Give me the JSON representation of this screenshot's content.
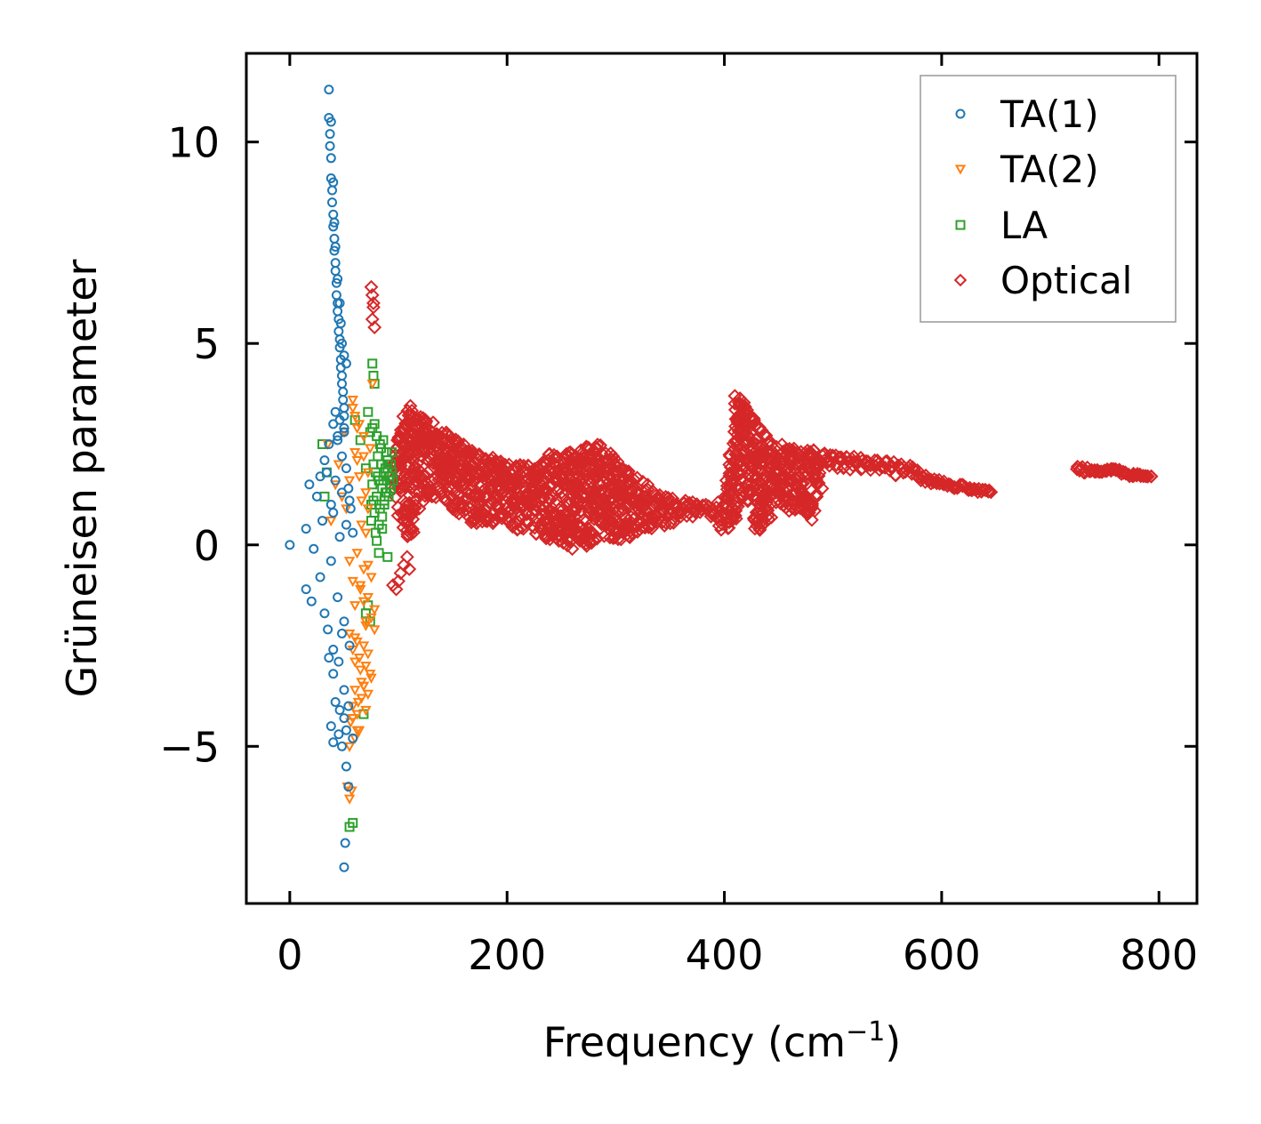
{
  "chart_data": {
    "type": "scatter",
    "title": "",
    "xlabel": "Frequency (cm",
    "xlabel_sup": "−1",
    "xlabel_close": ")",
    "ylabel": "Grüneisen parameter",
    "xlim": [
      -40,
      835
    ],
    "ylim": [
      -8.9,
      12.2
    ],
    "xticks": [
      0,
      200,
      400,
      600,
      800
    ],
    "xtick_labels": [
      "0",
      "200",
      "400",
      "600",
      "800"
    ],
    "yticks": [
      -5,
      0,
      5,
      10
    ],
    "ytick_labels": [
      "−5",
      "0",
      "5",
      "10"
    ],
    "grid": false,
    "legend_position": "top-right",
    "series": [
      {
        "name": "TA(1)",
        "marker": "circle",
        "color": "#1f77b4",
        "x": [
          36,
          36,
          37,
          37,
          38,
          38,
          39,
          39,
          40,
          40,
          41,
          41,
          42,
          42,
          43,
          43,
          44,
          44,
          45,
          45,
          46,
          46,
          47,
          47,
          48,
          48,
          49,
          49,
          50,
          50,
          38,
          40,
          41,
          42,
          44,
          46,
          47,
          48,
          50,
          52,
          0,
          15,
          18,
          22,
          25,
          28,
          30,
          32,
          34,
          36,
          38,
          40,
          42,
          44,
          46,
          48,
          50,
          52,
          55,
          58,
          15,
          20,
          28,
          32,
          35,
          38,
          40,
          44,
          48,
          50,
          36,
          40,
          45,
          50,
          55,
          38,
          42,
          46,
          50,
          54,
          40,
          45,
          48,
          52,
          58,
          52,
          54,
          51,
          50,
          40,
          42,
          44,
          46,
          48,
          50,
          52,
          54,
          56
        ],
        "y": [
          11.3,
          10.6,
          10.2,
          9.9,
          9.6,
          9.1,
          8.8,
          8.5,
          8.2,
          7.9,
          7.6,
          7.3,
          7.0,
          6.8,
          6.5,
          6.2,
          6.0,
          5.8,
          5.6,
          5.3,
          5.1,
          4.9,
          4.6,
          4.4,
          4.2,
          4.0,
          3.8,
          3.6,
          3.4,
          3.2,
          10.5,
          9.0,
          8.0,
          7.4,
          6.6,
          6.0,
          5.5,
          5.0,
          4.7,
          4.5,
          0.0,
          0.4,
          1.5,
          -0.1,
          1.2,
          1.7,
          0.6,
          2.1,
          1.8,
          2.5,
          1.0,
          0.8,
          1.6,
          2.7,
          0.2,
          1.3,
          2.9,
          0.5,
          1.1,
          0.3,
          -1.1,
          -1.4,
          -0.8,
          -1.7,
          -2.1,
          -0.4,
          -2.6,
          -1.3,
          -2.2,
          -1.9,
          -2.8,
          -3.2,
          -2.9,
          -3.6,
          -2.5,
          -4.5,
          -3.9,
          -4.1,
          -4.3,
          -4.0,
          -4.9,
          -4.7,
          -5.0,
          -4.6,
          -4.8,
          -5.5,
          -6.0,
          -7.4,
          -8.0,
          3.0,
          3.3,
          2.6,
          3.1,
          2.2,
          2.8,
          1.9,
          1.4,
          0.9
        ]
      },
      {
        "name": "TA(2)",
        "marker": "triangle-down",
        "color": "#ff7f0e",
        "x": [
          35,
          38,
          42,
          45,
          48,
          50,
          52,
          55,
          58,
          60,
          62,
          64,
          66,
          68,
          70,
          72,
          74,
          76,
          58,
          60,
          62,
          64,
          66,
          68,
          70,
          72,
          55,
          58,
          60,
          62,
          65,
          68,
          70,
          72,
          75,
          78,
          55,
          58,
          60,
          62,
          65,
          68,
          70,
          72,
          75,
          78,
          60,
          63,
          66,
          70,
          74,
          56,
          58,
          60,
          62,
          64,
          66,
          68,
          70,
          72,
          55,
          58,
          62,
          65,
          68,
          72,
          75,
          60,
          64,
          68,
          53,
          55,
          57
        ],
        "y": [
          2.5,
          0.6,
          1.5,
          2.0,
          1.2,
          2.8,
          0.9,
          1.6,
          3.4,
          2.3,
          2.1,
          3.0,
          1.1,
          2.7,
          0.3,
          1.8,
          2.4,
          4.0,
          3.6,
          3.2,
          2.9,
          1.7,
          0.5,
          2.2,
          1.3,
          0.9,
          -0.4,
          -0.9,
          -1.5,
          -0.2,
          -1.1,
          -0.6,
          -1.9,
          -1.3,
          -0.8,
          -1.6,
          -2.2,
          -2.6,
          -2.9,
          -2.4,
          -3.1,
          -2.5,
          -2.0,
          -2.7,
          -3.3,
          -2.1,
          -3.6,
          -3.9,
          -3.4,
          -4.1,
          -3.2,
          -4.4,
          -4.0,
          -4.8,
          -4.2,
          -4.6,
          -3.8,
          -3.5,
          -3.0,
          -3.7,
          -5.0,
          -4.3,
          -4.6,
          -1.0,
          -1.4,
          -0.5,
          -1.8,
          -2.3,
          -2.8,
          -3.5,
          -6.0,
          -6.3,
          -6.1
        ]
      },
      {
        "name": "LA",
        "marker": "square",
        "color": "#2ca02c",
        "x": [
          75,
          76,
          77,
          78,
          79,
          80,
          81,
          82,
          83,
          84,
          85,
          86,
          87,
          88,
          89,
          90,
          91,
          92,
          93,
          94,
          95,
          75,
          77,
          79,
          81,
          83,
          85,
          87,
          89,
          91,
          93,
          76,
          78,
          80,
          82,
          84,
          86,
          88,
          90,
          92,
          94,
          60,
          65,
          70,
          72,
          74,
          30,
          32,
          34,
          80,
          82,
          85,
          90,
          76,
          77,
          78,
          70,
          72,
          74,
          68,
          58,
          55
        ],
        "y": [
          1.0,
          1.5,
          2.0,
          0.8,
          1.8,
          1.2,
          2.2,
          1.6,
          0.9,
          2.4,
          1.4,
          2.6,
          1.1,
          1.9,
          1.3,
          2.1,
          1.7,
          1.5,
          2.0,
          1.8,
          1.6,
          0.6,
          1.1,
          0.3,
          1.7,
          2.5,
          0.7,
          1.0,
          2.3,
          1.2,
          1.4,
          2.9,
          3.0,
          2.7,
          0.5,
          2.0,
          1.6,
          1.3,
          1.9,
          1.7,
          2.3,
          3.1,
          2.6,
          1.9,
          3.3,
          2.8,
          2.5,
          1.2,
          1.8,
          0.1,
          -0.2,
          0.4,
          -0.3,
          4.5,
          4.2,
          4.0,
          -1.7,
          -1.5,
          -1.9,
          -4.2,
          -6.9,
          -7.0
        ]
      },
      {
        "name": "Optical",
        "marker": "diamond",
        "color": "#d62728",
        "bands": [
          [
            95,
            1.4,
            2.2
          ],
          [
            100,
            0.6,
            2.8
          ],
          [
            105,
            0.4,
            3.2
          ],
          [
            110,
            0.0,
            3.5
          ],
          [
            115,
            0.3,
            3.2
          ],
          [
            120,
            0.9,
            3.3
          ],
          [
            130,
            1.2,
            3.1
          ],
          [
            140,
            1.0,
            2.9
          ],
          [
            150,
            0.8,
            2.7
          ],
          [
            160,
            0.7,
            2.5
          ],
          [
            170,
            0.5,
            2.4
          ],
          [
            180,
            0.6,
            2.2
          ],
          [
            190,
            0.5,
            2.2
          ],
          [
            200,
            0.6,
            2.1
          ],
          [
            210,
            0.3,
            2.0
          ],
          [
            220,
            0.4,
            2.0
          ],
          [
            230,
            0.2,
            2.1
          ],
          [
            240,
            0.1,
            2.3
          ],
          [
            250,
            0.0,
            2.2
          ],
          [
            260,
            -0.1,
            2.4
          ],
          [
            270,
            -0.1,
            2.4
          ],
          [
            280,
            0.1,
            2.6
          ],
          [
            290,
            0.2,
            2.4
          ],
          [
            300,
            0.1,
            2.2
          ],
          [
            310,
            0.1,
            1.9
          ],
          [
            320,
            0.3,
            1.7
          ],
          [
            330,
            0.4,
            1.5
          ],
          [
            340,
            0.4,
            1.3
          ],
          [
            350,
            0.5,
            1.2
          ],
          [
            360,
            0.6,
            1.1
          ],
          [
            370,
            0.7,
            1.1
          ],
          [
            380,
            0.8,
            1.0
          ],
          [
            390,
            0.6,
            1.0
          ],
          [
            400,
            0.3,
            1.2
          ],
          [
            405,
            0.4,
            2.8
          ],
          [
            410,
            0.6,
            3.7
          ],
          [
            415,
            1.0,
            3.7
          ],
          [
            420,
            1.2,
            3.5
          ],
          [
            425,
            0.5,
            3.3
          ],
          [
            430,
            0.2,
            3.1
          ],
          [
            435,
            0.4,
            2.9
          ],
          [
            440,
            0.6,
            2.7
          ],
          [
            450,
            0.9,
            2.5
          ],
          [
            460,
            0.8,
            2.5
          ],
          [
            470,
            0.9,
            2.4
          ],
          [
            480,
            0.5,
            2.4
          ],
          [
            490,
            1.8,
            2.3
          ],
          [
            500,
            1.9,
            2.3
          ],
          [
            510,
            1.9,
            2.2
          ],
          [
            520,
            1.8,
            2.2
          ],
          [
            530,
            1.9,
            2.2
          ],
          [
            540,
            1.8,
            2.1
          ],
          [
            550,
            1.8,
            2.1
          ],
          [
            560,
            1.7,
            2.1
          ],
          [
            570,
            1.7,
            2.0
          ],
          [
            580,
            1.6,
            1.8
          ],
          [
            590,
            1.5,
            1.7
          ],
          [
            600,
            1.5,
            1.6
          ],
          [
            610,
            1.4,
            1.5
          ],
          [
            620,
            1.4,
            1.5
          ],
          [
            630,
            1.3,
            1.4
          ],
          [
            640,
            1.3,
            1.4
          ],
          [
            648,
            1.3,
            1.3
          ],
          [
            725,
            1.8,
            2.0
          ],
          [
            730,
            1.7,
            2.0
          ],
          [
            740,
            1.8,
            1.9
          ],
          [
            750,
            1.8,
            1.9
          ],
          [
            760,
            1.8,
            1.9
          ],
          [
            770,
            1.7,
            1.8
          ],
          [
            780,
            1.7,
            1.8
          ],
          [
            790,
            1.7,
            1.7
          ],
          [
            795,
            1.7,
            1.7
          ]
        ],
        "outliers_x": [
          75,
          76,
          77,
          78,
          76,
          77,
          95,
          98,
          100,
          102,
          105,
          108,
          110,
          480,
          485,
          490,
          460,
          470,
          420,
          425,
          430,
          440,
          450
        ],
        "outliers_y": [
          6.4,
          6.2,
          5.9,
          5.4,
          5.6,
          6.0,
          -1.0,
          -1.1,
          -0.9,
          -0.7,
          -0.5,
          -0.3,
          -0.6,
          0.9,
          1.2,
          1.4,
          1.6,
          1.1,
          2.1,
          2.0,
          1.7,
          1.5,
          1.8
        ]
      }
    ]
  }
}
